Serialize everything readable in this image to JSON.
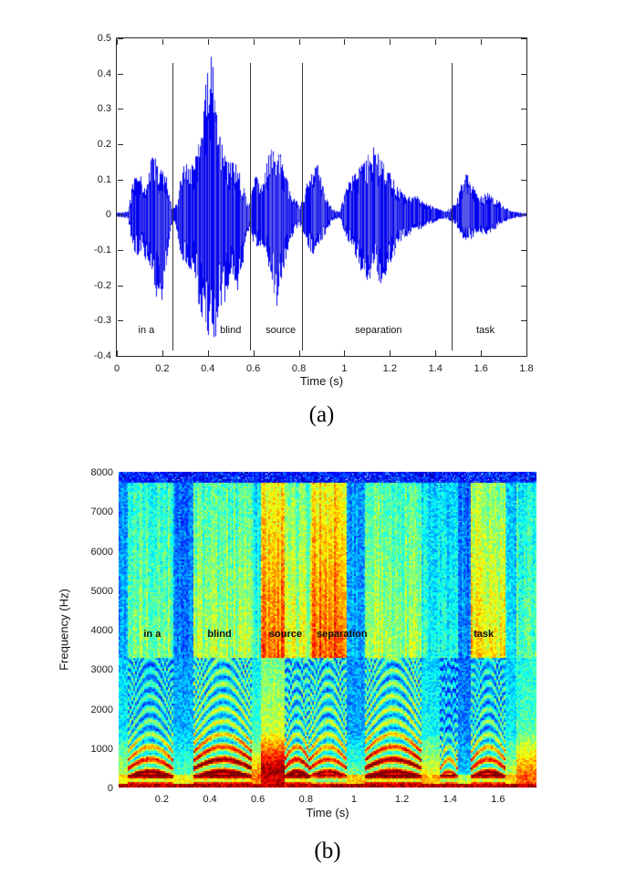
{
  "figure": {
    "caption_a": "(a)",
    "caption_b": "(b)"
  },
  "colors": {
    "waveform": "#0202f0",
    "waveform_light": "#5555e8",
    "axis": "#2b2b2b",
    "boundary_line": "#3a3a3a",
    "text": "#111111",
    "background": "#ffffff"
  },
  "chart_data": [
    {
      "type": "line",
      "name": "speech-waveform",
      "title": "",
      "xlabel": "Time (s)",
      "ylabel": "",
      "xlim": [
        0,
        1.8
      ],
      "ylim": [
        -0.4,
        0.5
      ],
      "x_ticks": [
        {
          "v": 0,
          "label": "0"
        },
        {
          "v": 0.2,
          "label": "0.2"
        },
        {
          "v": 0.4,
          "label": "0.4"
        },
        {
          "v": 0.6,
          "label": "0.6"
        },
        {
          "v": 0.8,
          "label": "0.8"
        },
        {
          "v": 1,
          "label": "1"
        },
        {
          "v": 1.2,
          "label": "1.2"
        },
        {
          "v": 1.4,
          "label": "1.4"
        },
        {
          "v": 1.6,
          "label": "1.6"
        },
        {
          "v": 1.8,
          "label": "1.8"
        }
      ],
      "y_ticks": [
        {
          "v": 0.5,
          "label": "0.5"
        },
        {
          "v": 0.4,
          "label": "0.4"
        },
        {
          "v": 0.3,
          "label": "0.3"
        },
        {
          "v": 0.2,
          "label": "0.2"
        },
        {
          "v": 0.1,
          "label": "0.1"
        },
        {
          "v": 0,
          "label": "0"
        },
        {
          "v": -0.1,
          "label": "-0.1"
        },
        {
          "v": -0.2,
          "label": "-0.2"
        },
        {
          "v": -0.3,
          "label": "-0.3"
        },
        {
          "v": -0.4,
          "label": "-0.4"
        }
      ],
      "segment_boundaries": [
        0.245,
        0.585,
        0.815,
        1.47
      ],
      "boundary_span": [
        0.43,
        -0.385
      ],
      "word_labels": [
        {
          "text": "in a",
          "t": 0.13,
          "y": -0.33
        },
        {
          "text": "blind",
          "t": 0.5,
          "y": -0.33
        },
        {
          "text": "source",
          "t": 0.72,
          "y": -0.33
        },
        {
          "text": "separation",
          "t": 1.15,
          "y": -0.33
        },
        {
          "text": "task",
          "t": 1.62,
          "y": -0.33
        }
      ],
      "envelope": [
        [
          0.0,
          0.005,
          0.005
        ],
        [
          0.05,
          0.01,
          0.01
        ],
        [
          0.07,
          0.09,
          0.1
        ],
        [
          0.09,
          0.13,
          0.12
        ],
        [
          0.11,
          0.11,
          0.1
        ],
        [
          0.13,
          0.09,
          0.14
        ],
        [
          0.155,
          0.18,
          0.16
        ],
        [
          0.17,
          0.16,
          0.22
        ],
        [
          0.19,
          0.13,
          0.28
        ],
        [
          0.21,
          0.14,
          0.22
        ],
        [
          0.23,
          0.06,
          0.1
        ],
        [
          0.245,
          0.02,
          0.02
        ],
        [
          0.26,
          0.03,
          0.03
        ],
        [
          0.28,
          0.1,
          0.12
        ],
        [
          0.3,
          0.17,
          0.14
        ],
        [
          0.32,
          0.13,
          0.18
        ],
        [
          0.34,
          0.16,
          0.16
        ],
        [
          0.36,
          0.22,
          0.26
        ],
        [
          0.38,
          0.32,
          0.33
        ],
        [
          0.4,
          0.41,
          0.35
        ],
        [
          0.415,
          0.45,
          0.33
        ],
        [
          0.43,
          0.4,
          0.37
        ],
        [
          0.45,
          0.25,
          0.3
        ],
        [
          0.47,
          0.18,
          0.26
        ],
        [
          0.49,
          0.15,
          0.22
        ],
        [
          0.51,
          0.17,
          0.18
        ],
        [
          0.53,
          0.14,
          0.22
        ],
        [
          0.55,
          0.1,
          0.16
        ],
        [
          0.57,
          0.05,
          0.08
        ],
        [
          0.585,
          0.03,
          0.03
        ],
        [
          0.6,
          0.1,
          0.08
        ],
        [
          0.62,
          0.12,
          0.1
        ],
        [
          0.64,
          0.08,
          0.09
        ],
        [
          0.66,
          0.16,
          0.14
        ],
        [
          0.68,
          0.19,
          0.18
        ],
        [
          0.7,
          0.21,
          0.28
        ],
        [
          0.72,
          0.18,
          0.22
        ],
        [
          0.74,
          0.12,
          0.14
        ],
        [
          0.76,
          0.08,
          0.08
        ],
        [
          0.78,
          0.05,
          0.05
        ],
        [
          0.8,
          0.03,
          0.03
        ],
        [
          0.82,
          0.05,
          0.06
        ],
        [
          0.84,
          0.1,
          0.09
        ],
        [
          0.86,
          0.13,
          0.12
        ],
        [
          0.88,
          0.16,
          0.1
        ],
        [
          0.9,
          0.1,
          0.08
        ],
        [
          0.92,
          0.05,
          0.05
        ],
        [
          0.95,
          0.015,
          0.015
        ],
        [
          0.98,
          0.01,
          0.01
        ],
        [
          1.0,
          0.06,
          0.05
        ],
        [
          1.02,
          0.1,
          0.08
        ],
        [
          1.05,
          0.13,
          0.12
        ],
        [
          1.08,
          0.15,
          0.18
        ],
        [
          1.1,
          0.17,
          0.2
        ],
        [
          1.13,
          0.2,
          0.16
        ],
        [
          1.16,
          0.16,
          0.2
        ],
        [
          1.19,
          0.13,
          0.16
        ],
        [
          1.22,
          0.1,
          0.12
        ],
        [
          1.25,
          0.07,
          0.08
        ],
        [
          1.28,
          0.05,
          0.06
        ],
        [
          1.31,
          0.06,
          0.05
        ],
        [
          1.34,
          0.04,
          0.04
        ],
        [
          1.37,
          0.03,
          0.03
        ],
        [
          1.4,
          0.02,
          0.02
        ],
        [
          1.44,
          0.01,
          0.01
        ],
        [
          1.47,
          0.02,
          0.02
        ],
        [
          1.5,
          0.05,
          0.04
        ],
        [
          1.53,
          0.13,
          0.08
        ],
        [
          1.56,
          0.09,
          0.07
        ],
        [
          1.59,
          0.05,
          0.05
        ],
        [
          1.62,
          0.07,
          0.06
        ],
        [
          1.65,
          0.05,
          0.05
        ],
        [
          1.68,
          0.04,
          0.03
        ],
        [
          1.71,
          0.02,
          0.02
        ],
        [
          1.74,
          0.01,
          0.01
        ],
        [
          1.8,
          0.004,
          0.004
        ]
      ]
    },
    {
      "type": "heatmap",
      "name": "speech-spectrogram",
      "title": "",
      "xlabel": "Time (s)",
      "ylabel": "Frequency (Hz)",
      "xlim": [
        0.02,
        1.76
      ],
      "ylim": [
        0,
        8000
      ],
      "colormap": "jet",
      "x_ticks": [
        {
          "v": 0.2,
          "label": "0.2"
        },
        {
          "v": 0.4,
          "label": "0.4"
        },
        {
          "v": 0.6,
          "label": "0.6"
        },
        {
          "v": 0.8,
          "label": "0.8"
        },
        {
          "v": 1,
          "label": "1"
        },
        {
          "v": 1.2,
          "label": "1.2"
        },
        {
          "v": 1.4,
          "label": "1.4"
        },
        {
          "v": 1.6,
          "label": "1.6"
        }
      ],
      "y_ticks": [
        {
          "v": 8000,
          "label": "8000"
        },
        {
          "v": 7000,
          "label": "7000"
        },
        {
          "v": 6000,
          "label": "6000"
        },
        {
          "v": 5000,
          "label": "5000"
        },
        {
          "v": 4000,
          "label": "4000"
        },
        {
          "v": 3000,
          "label": "3000"
        },
        {
          "v": 2000,
          "label": "2000"
        },
        {
          "v": 1000,
          "label": "1000"
        },
        {
          "v": 0,
          "label": "0"
        }
      ],
      "word_labels": [
        {
          "text": "in a",
          "t": 0.16,
          "f": 3850
        },
        {
          "text": "blind",
          "t": 0.44,
          "f": 3850
        },
        {
          "text": "source",
          "t": 0.715,
          "f": 3850
        },
        {
          "text": "separation",
          "t": 0.95,
          "f": 3850
        },
        {
          "text": "task",
          "t": 1.54,
          "f": 3850
        }
      ],
      "segments": [
        {
          "t0": 0.02,
          "t1": 0.06,
          "low": 0.35,
          "mid": 0.3,
          "high": 0.2,
          "striped": false
        },
        {
          "t0": 0.06,
          "t1": 0.245,
          "low": 0.95,
          "mid": 0.5,
          "high": 0.5,
          "striped": true
        },
        {
          "t0": 0.245,
          "t1": 0.335,
          "low": 0.3,
          "mid": 0.18,
          "high": 0.12,
          "striped": false
        },
        {
          "t0": 0.335,
          "t1": 0.575,
          "low": 1.0,
          "mid": 0.65,
          "high": 0.55,
          "striped": true
        },
        {
          "t0": 0.575,
          "t1": 0.61,
          "low": 0.55,
          "mid": 0.4,
          "high": 0.4,
          "striped": false
        },
        {
          "t0": 0.61,
          "t1": 0.71,
          "low": 0.85,
          "mid": 0.65,
          "high": 0.95,
          "striped": false
        },
        {
          "t0": 0.71,
          "t1": 0.815,
          "low": 0.95,
          "mid": 0.55,
          "high": 0.6,
          "striped": true
        },
        {
          "t0": 0.815,
          "t1": 0.97,
          "low": 0.7,
          "mid": 0.6,
          "high": 0.95,
          "striped": true
        },
        {
          "t0": 0.97,
          "t1": 1.045,
          "low": 0.4,
          "mid": 0.15,
          "high": 0.18,
          "striped": false
        },
        {
          "t0": 1.045,
          "t1": 1.28,
          "low": 1.0,
          "mid": 0.65,
          "high": 0.55,
          "striped": true
        },
        {
          "t0": 1.28,
          "t1": 1.36,
          "low": 0.45,
          "mid": 0.32,
          "high": 0.35,
          "striped": false
        },
        {
          "t0": 1.36,
          "t1": 1.43,
          "low": 0.8,
          "mid": 0.35,
          "high": 0.3,
          "striped": true
        },
        {
          "t0": 1.43,
          "t1": 1.49,
          "low": 0.18,
          "mid": 0.08,
          "high": 0.12,
          "striped": false
        },
        {
          "t0": 1.49,
          "t1": 1.63,
          "low": 0.9,
          "mid": 0.5,
          "high": 0.7,
          "striped": true
        },
        {
          "t0": 1.63,
          "t1": 1.68,
          "low": 0.4,
          "mid": 0.28,
          "high": 0.28,
          "striped": false
        },
        {
          "t0": 1.68,
          "t1": 1.76,
          "low": 0.6,
          "mid": 0.45,
          "high": 0.45,
          "striped": false
        }
      ]
    }
  ]
}
